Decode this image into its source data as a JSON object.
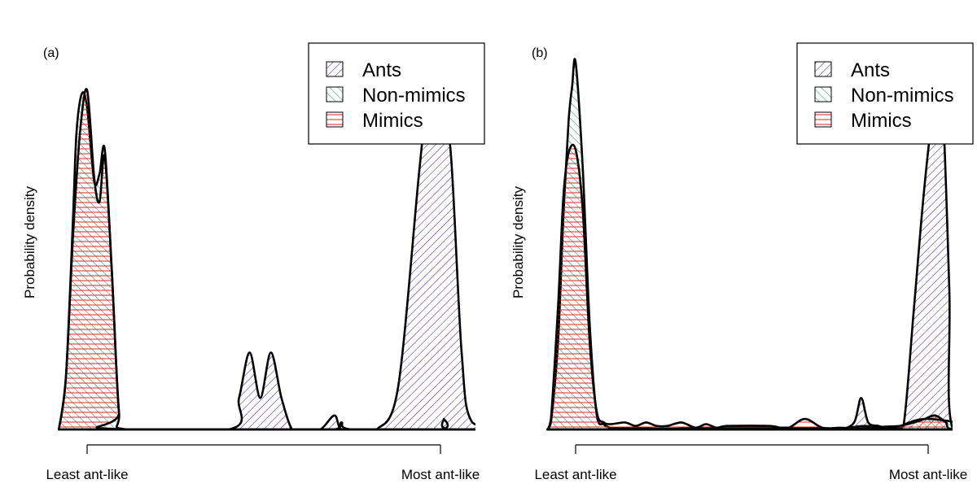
{
  "chart_data": [
    {
      "type": "area",
      "panel_label": "(a)",
      "ylabel": "Probability density",
      "x_ticks": [
        "Least ant-like",
        "Most ant-like"
      ],
      "legend_position": "top-right",
      "series": [
        {
          "name": "Ants",
          "hatch": "diagonal-down",
          "color": "#3a1a8a",
          "x": [
            0.0,
            0.4,
            0.43,
            0.46,
            0.49,
            0.52,
            0.55,
            0.58,
            0.61,
            0.66,
            0.7,
            0.72,
            0.78,
            0.82,
            0.88,
            0.94,
            0.97,
            1.0,
            1.03,
            1.06,
            1.09,
            1.2
          ],
          "y": [
            0,
            0,
            0.09,
            0.22,
            0.09,
            0.22,
            0.09,
            0,
            0,
            0,
            0.04,
            0,
            0,
            0,
            0.12,
            0.74,
            1.0,
            1.0,
            0.78,
            0.22,
            0.02,
            0
          ]
        },
        {
          "name": "Non-mimics",
          "hatch": "diagonal-up",
          "color": "#1e8a5a",
          "x": [
            -0.08,
            -0.06,
            -0.04,
            -0.03,
            -0.015,
            0.0,
            0.02,
            0.035,
            0.05,
            0.07,
            0.09,
            0.11,
            0.4,
            0.55,
            0.7,
            0.72,
            0.75,
            1.0,
            1.01,
            1.02,
            1.2
          ],
          "y": [
            0,
            0.15,
            0.6,
            0.85,
            0.96,
            0.92,
            0.71,
            0.73,
            0.8,
            0.45,
            0.05,
            0,
            0,
            0,
            0,
            0.02,
            0,
            0,
            0.03,
            0,
            0
          ]
        },
        {
          "name": "Mimics",
          "hatch": "horizontal",
          "color": "#e02020",
          "x": [
            -0.08,
            -0.06,
            -0.04,
            -0.02,
            0.0,
            0.02,
            0.035,
            0.05,
            0.07,
            0.09,
            0.11,
            1.2
          ],
          "y": [
            0,
            0.15,
            0.55,
            0.85,
            0.97,
            0.72,
            0.65,
            0.78,
            0.45,
            0.05,
            0,
            0
          ]
        }
      ]
    },
    {
      "type": "area",
      "panel_label": "(b)",
      "ylabel": "Probability density",
      "x_ticks": [
        "Least ant-like",
        "Most ant-like"
      ],
      "legend_position": "top-right",
      "series": [
        {
          "name": "Ants",
          "hatch": "diagonal-down",
          "color": "#3a1a8a",
          "x": [
            -0.08,
            0.7,
            0.75,
            0.79,
            0.81,
            0.83,
            0.86,
            0.9,
            0.93,
            0.96,
            0.99,
            1.02,
            1.04,
            1.06,
            1.07,
            1.2
          ],
          "y": [
            0,
            0,
            0,
            0.02,
            0.09,
            0.02,
            0.01,
            0,
            0.01,
            0.35,
            0.7,
            0.95,
            0.95,
            0.4,
            0,
            0
          ]
        },
        {
          "name": "Non-mimics",
          "hatch": "diagonal-up",
          "color": "#1e8a5a",
          "x": [
            -0.08,
            -0.07,
            -0.05,
            -0.035,
            -0.02,
            -0.01,
            0.0,
            0.02,
            0.04,
            0.06,
            0.08,
            0.1,
            0.14,
            0.25,
            0.4,
            0.55,
            0.65,
            0.75,
            0.82,
            0.9,
            1.0,
            1.2
          ],
          "y": [
            0,
            0.02,
            0.25,
            0.6,
            0.88,
            0.98,
            1.05,
            0.75,
            0.3,
            0.04,
            0.015,
            0.005,
            0.005,
            0.002,
            0.005,
            0.005,
            0.005,
            0.003,
            0.01,
            0.004,
            0.03,
            0
          ]
        },
        {
          "name": "Mimics",
          "hatch": "horizontal",
          "color": "#e02020",
          "x": [
            -0.08,
            -0.07,
            -0.05,
            -0.035,
            -0.02,
            0.0,
            0.02,
            0.04,
            0.06,
            0.08,
            0.1,
            0.14,
            0.17,
            0.2,
            0.23,
            0.26,
            0.3,
            0.34,
            0.37,
            0.4,
            0.43,
            0.55,
            0.6,
            0.65,
            0.7,
            0.75,
            0.8,
            0.84,
            0.88,
            0.92,
            0.96,
            0.99,
            1.02,
            1.05,
            1.07,
            1.2
          ],
          "y": [
            0,
            0.03,
            0.35,
            0.66,
            0.79,
            0.8,
            0.63,
            0.25,
            0.05,
            0.02,
            0.015,
            0.02,
            0.01,
            0.02,
            0.01,
            0.01,
            0.02,
            0.005,
            0.015,
            0.005,
            0.01,
            0.01,
            0.003,
            0.03,
            0.005,
            0.005,
            0.003,
            0.005,
            0.008,
            0.01,
            0.02,
            0.03,
            0.04,
            0.02,
            0,
            0
          ]
        }
      ]
    }
  ]
}
